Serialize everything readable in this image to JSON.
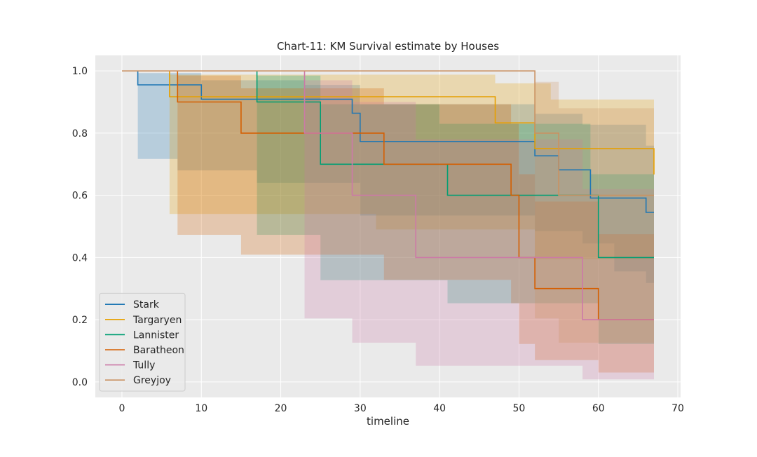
{
  "chart_data": {
    "type": "line",
    "title": "Chart-11: KM Survival estimate by Houses",
    "xlabel": "timeline",
    "ylabel": "",
    "xlim": [
      -3.35,
      70.35
    ],
    "ylim": [
      -0.05,
      1.05
    ],
    "xticks": [
      0,
      10,
      20,
      30,
      40,
      50,
      60,
      70
    ],
    "yticks": [
      0.0,
      0.2,
      0.4,
      0.6,
      0.8,
      1.0
    ],
    "grid": true,
    "legend_position": "lower-left",
    "series": [
      {
        "name": "Stark",
        "color": "#1f77b4",
        "steps": [
          [
            2,
            1.0
          ],
          [
            2,
            0.955
          ],
          [
            10,
            0.955
          ],
          [
            10,
            0.909
          ],
          [
            29,
            0.909
          ],
          [
            29,
            0.864
          ],
          [
            30,
            0.864
          ],
          [
            30,
            0.773
          ],
          [
            52,
            0.773
          ],
          [
            52,
            0.727
          ],
          [
            55,
            0.727
          ],
          [
            55,
            0.682
          ],
          [
            59,
            0.682
          ],
          [
            59,
            0.591
          ],
          [
            66,
            0.591
          ],
          [
            66,
            0.545
          ],
          [
            67,
            0.545
          ]
        ],
        "ci_upper": [
          [
            2,
            0.993
          ],
          [
            10,
            0.993
          ],
          [
            10,
            0.97
          ],
          [
            23,
            0.97
          ],
          [
            23,
            0.955
          ],
          [
            30,
            0.955
          ],
          [
            30,
            0.893
          ],
          [
            52,
            0.893
          ],
          [
            52,
            0.862
          ],
          [
            58,
            0.862
          ],
          [
            58,
            0.827
          ],
          [
            66,
            0.827
          ],
          [
            66,
            0.76
          ],
          [
            67,
            0.76
          ]
        ],
        "ci_lower": [
          [
            2,
            0.717
          ],
          [
            7,
            0.717
          ],
          [
            7,
            0.68
          ],
          [
            17,
            0.68
          ],
          [
            17,
            0.64
          ],
          [
            30,
            0.64
          ],
          [
            30,
            0.535
          ],
          [
            52,
            0.535
          ],
          [
            52,
            0.485
          ],
          [
            58,
            0.485
          ],
          [
            58,
            0.445
          ],
          [
            62,
            0.445
          ],
          [
            62,
            0.355
          ],
          [
            66,
            0.355
          ],
          [
            66,
            0.318
          ],
          [
            67,
            0.318
          ]
        ]
      },
      {
        "name": "Targaryen",
        "color": "#e69f00",
        "steps": [
          [
            6,
            1.0
          ],
          [
            6,
            0.917
          ],
          [
            47,
            0.917
          ],
          [
            47,
            0.833
          ],
          [
            52,
            0.833
          ],
          [
            52,
            0.75
          ],
          [
            67,
            0.75
          ],
          [
            67,
            0.667
          ]
        ],
        "ci_upper": [
          [
            6,
            0.988
          ],
          [
            47,
            0.988
          ],
          [
            47,
            0.96
          ],
          [
            54,
            0.96
          ],
          [
            54,
            0.908
          ],
          [
            67,
            0.908
          ]
        ],
        "ci_lower": [
          [
            6,
            0.54
          ],
          [
            32,
            0.54
          ],
          [
            32,
            0.49
          ],
          [
            52,
            0.49
          ],
          [
            52,
            0.395
          ],
          [
            67,
            0.395
          ]
        ]
      },
      {
        "name": "Lannister",
        "color": "#009e73",
        "steps": [
          [
            17,
            1.0
          ],
          [
            17,
            0.9
          ],
          [
            25,
            0.9
          ],
          [
            25,
            0.7
          ],
          [
            41,
            0.7
          ],
          [
            41,
            0.6
          ],
          [
            60,
            0.6
          ],
          [
            60,
            0.4
          ],
          [
            67,
            0.4
          ]
        ],
        "ci_upper": [
          [
            17,
            0.985
          ],
          [
            25,
            0.985
          ],
          [
            25,
            0.893
          ],
          [
            40,
            0.893
          ],
          [
            40,
            0.83
          ],
          [
            59,
            0.83
          ],
          [
            59,
            0.668
          ],
          [
            67,
            0.668
          ]
        ],
        "ci_lower": [
          [
            17,
            0.473
          ],
          [
            25,
            0.473
          ],
          [
            25,
            0.327
          ],
          [
            41,
            0.327
          ],
          [
            41,
            0.253
          ],
          [
            60,
            0.253
          ],
          [
            60,
            0.122
          ],
          [
            67,
            0.122
          ]
        ]
      },
      {
        "name": "Baratheon",
        "color": "#d55e00",
        "steps": [
          [
            7,
            1.0
          ],
          [
            7,
            0.9
          ],
          [
            15,
            0.9
          ],
          [
            15,
            0.8
          ],
          [
            33,
            0.8
          ],
          [
            33,
            0.7
          ],
          [
            49,
            0.7
          ],
          [
            49,
            0.6
          ],
          [
            50,
            0.6
          ],
          [
            50,
            0.4
          ],
          [
            52,
            0.4
          ],
          [
            52,
            0.3
          ],
          [
            60,
            0.3
          ],
          [
            60,
            0.2
          ],
          [
            67,
            0.2
          ]
        ],
        "ci_upper": [
          [
            7,
            0.985
          ],
          [
            15,
            0.985
          ],
          [
            15,
            0.944
          ],
          [
            33,
            0.944
          ],
          [
            33,
            0.893
          ],
          [
            49,
            0.893
          ],
          [
            49,
            0.83
          ],
          [
            50,
            0.83
          ],
          [
            50,
            0.668
          ],
          [
            52,
            0.668
          ],
          [
            52,
            0.58
          ],
          [
            60,
            0.58
          ],
          [
            60,
            0.475
          ],
          [
            67,
            0.475
          ]
        ],
        "ci_lower": [
          [
            7,
            0.473
          ],
          [
            15,
            0.473
          ],
          [
            15,
            0.409
          ],
          [
            33,
            0.409
          ],
          [
            33,
            0.328
          ],
          [
            49,
            0.328
          ],
          [
            49,
            0.253
          ],
          [
            50,
            0.253
          ],
          [
            50,
            0.122
          ],
          [
            52,
            0.122
          ],
          [
            52,
            0.07
          ],
          [
            60,
            0.07
          ],
          [
            60,
            0.03
          ],
          [
            67,
            0.03
          ]
        ]
      },
      {
        "name": "Tully",
        "color": "#cc79a7",
        "steps": [
          [
            23,
            1.0
          ],
          [
            23,
            0.8
          ],
          [
            29,
            0.8
          ],
          [
            29,
            0.6
          ],
          [
            37,
            0.6
          ],
          [
            37,
            0.4
          ],
          [
            58,
            0.4
          ],
          [
            58,
            0.2
          ],
          [
            67,
            0.2
          ]
        ],
        "ci_upper": [
          [
            23,
            0.97
          ],
          [
            29,
            0.97
          ],
          [
            29,
            0.9
          ],
          [
            37,
            0.9
          ],
          [
            37,
            0.78
          ],
          [
            58,
            0.78
          ],
          [
            58,
            0.62
          ],
          [
            67,
            0.62
          ]
        ],
        "ci_lower": [
          [
            23,
            0.204
          ],
          [
            29,
            0.204
          ],
          [
            29,
            0.126
          ],
          [
            37,
            0.126
          ],
          [
            37,
            0.052
          ],
          [
            58,
            0.052
          ],
          [
            58,
            0.008
          ],
          [
            67,
            0.008
          ]
        ]
      },
      {
        "name": "Greyjoy",
        "color": "#ca9161",
        "steps": [
          [
            0,
            1.0
          ],
          [
            52,
            1.0
          ],
          [
            52,
            0.8
          ],
          [
            55,
            0.8
          ],
          [
            55,
            0.6
          ],
          [
            67,
            0.6
          ]
        ],
        "ci_upper": [
          [
            52,
            0.965
          ],
          [
            55,
            0.965
          ],
          [
            55,
            0.88
          ],
          [
            67,
            0.88
          ]
        ],
        "ci_lower": [
          [
            52,
            0.204
          ],
          [
            55,
            0.204
          ],
          [
            55,
            0.126
          ],
          [
            67,
            0.126
          ]
        ]
      }
    ]
  }
}
